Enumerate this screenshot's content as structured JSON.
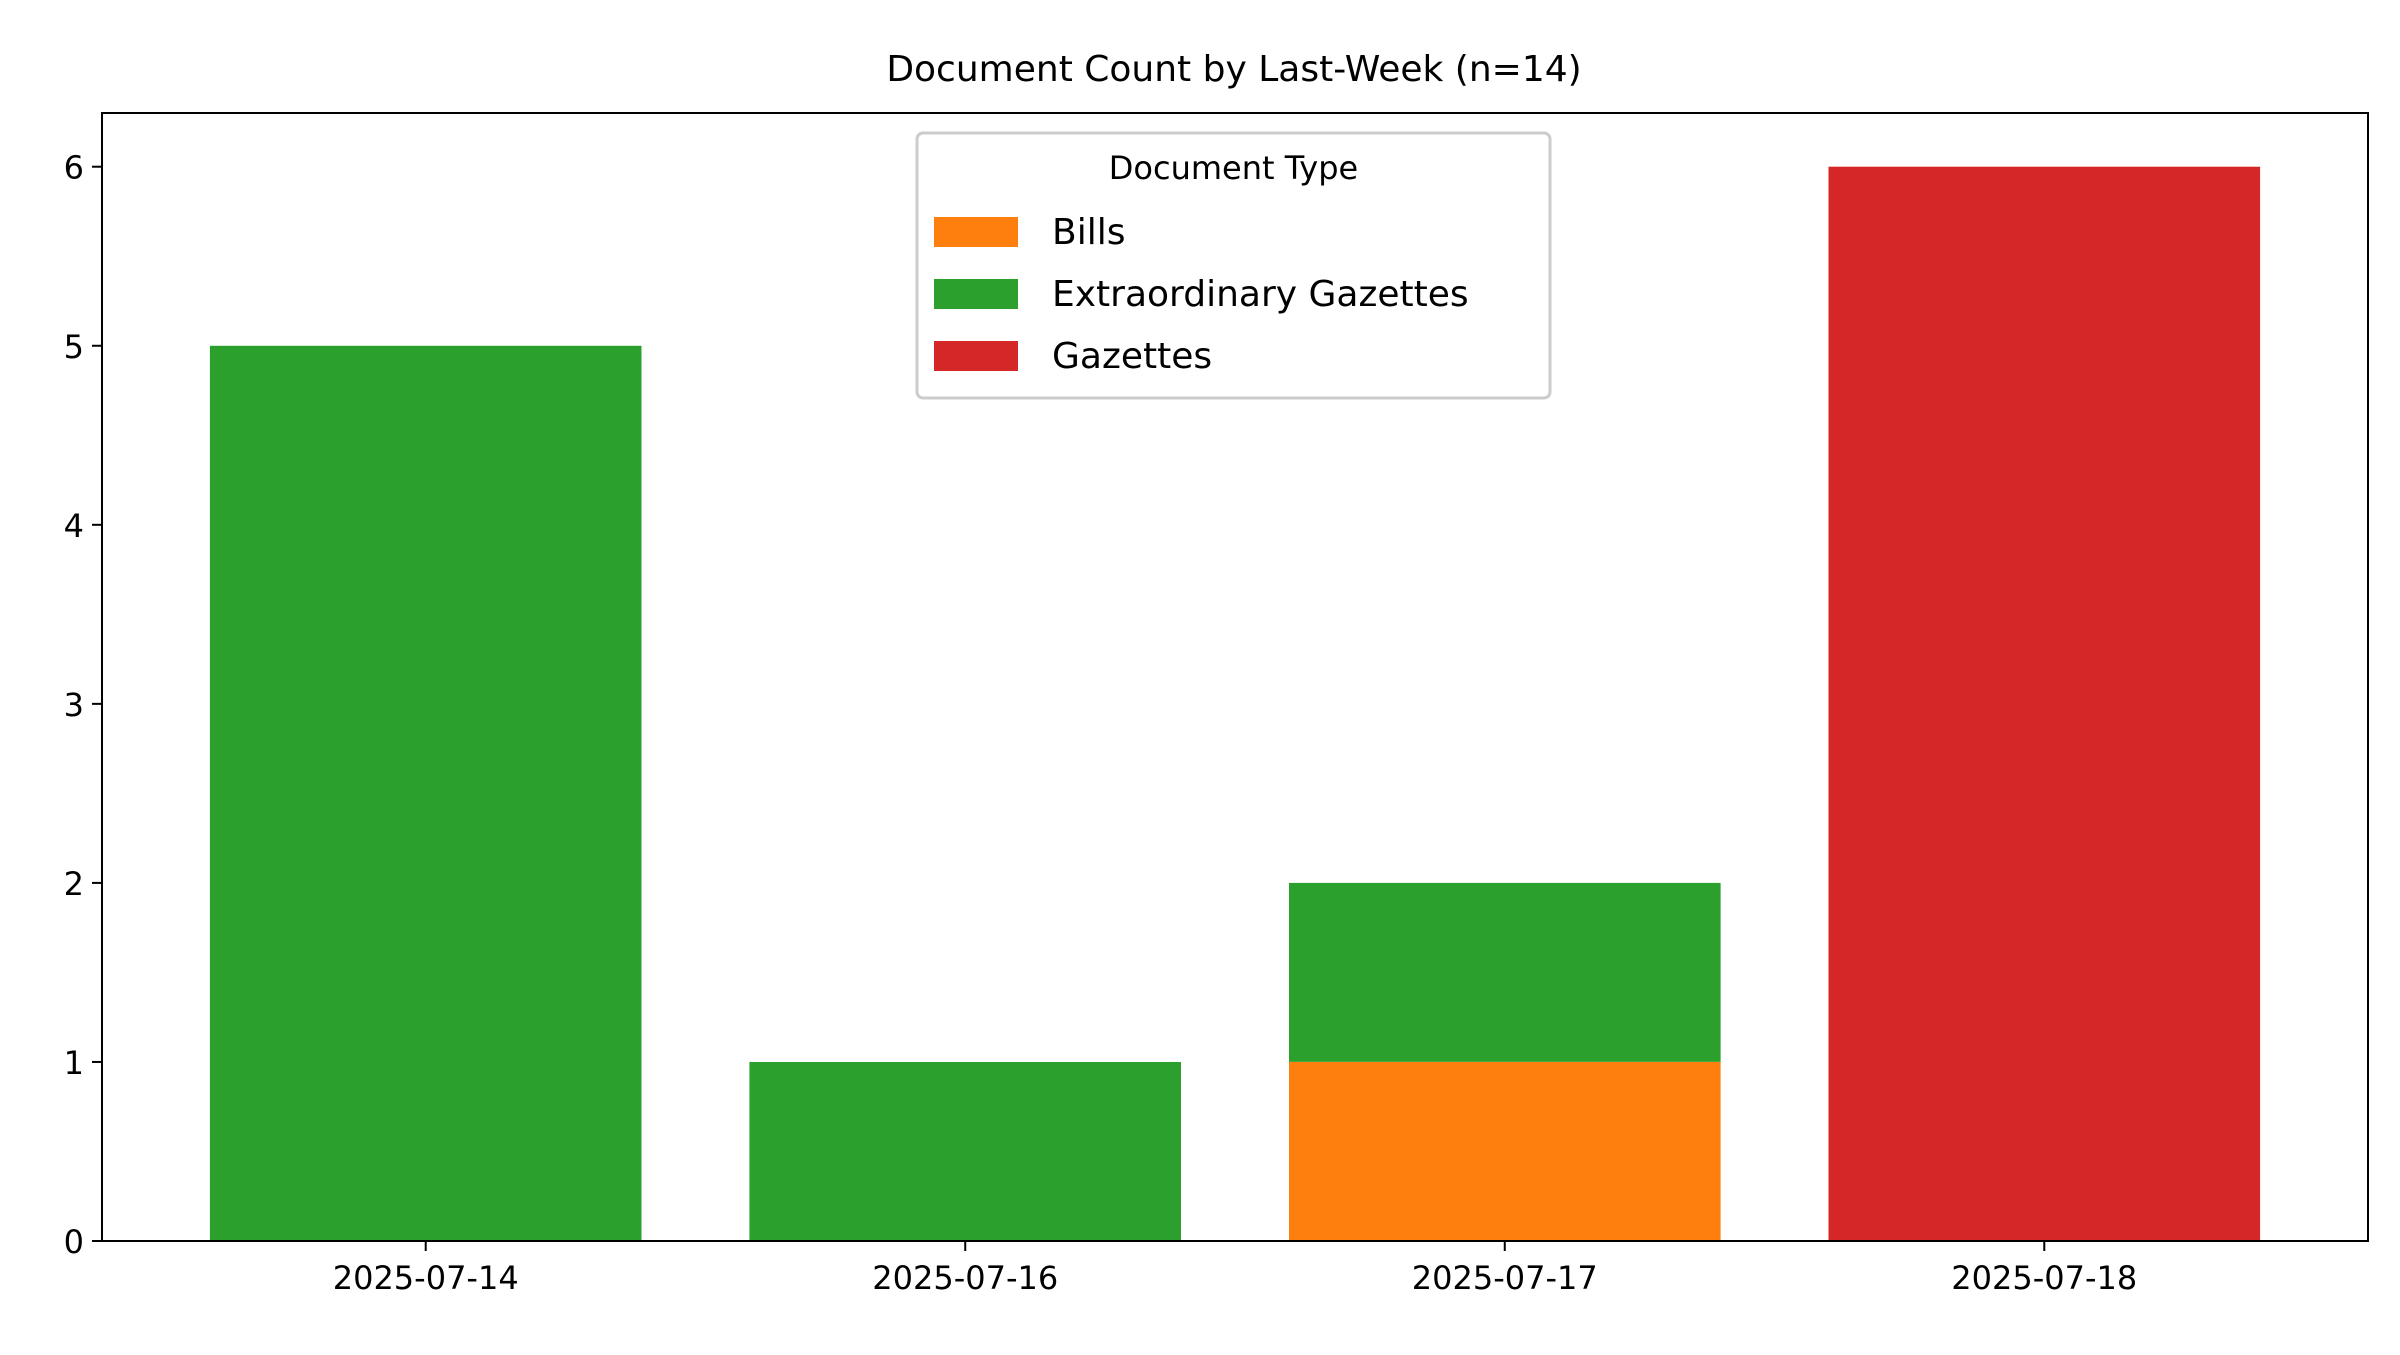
{
  "chart_data": {
    "type": "bar",
    "stacked": true,
    "title": "Document Count by Last-Week (n=14)",
    "xlabel": "",
    "ylabel": "",
    "categories": [
      "2025-07-14",
      "2025-07-16",
      "2025-07-17",
      "2025-07-18"
    ],
    "series": [
      {
        "name": "Bills",
        "color": "#ff7f0e",
        "values": [
          0,
          0,
          1,
          0
        ]
      },
      {
        "name": "Extraordinary Gazettes",
        "color": "#2ca02c",
        "values": [
          5,
          1,
          1,
          0
        ]
      },
      {
        "name": "Gazettes",
        "color": "#d62728",
        "values": [
          0,
          0,
          0,
          6
        ]
      }
    ],
    "ylim": [
      0,
      6.3
    ],
    "yticks": [
      0,
      1,
      2,
      3,
      4,
      5,
      6
    ],
    "grid": false,
    "legend": {
      "title": "Document Type",
      "placement": "top-center"
    }
  }
}
